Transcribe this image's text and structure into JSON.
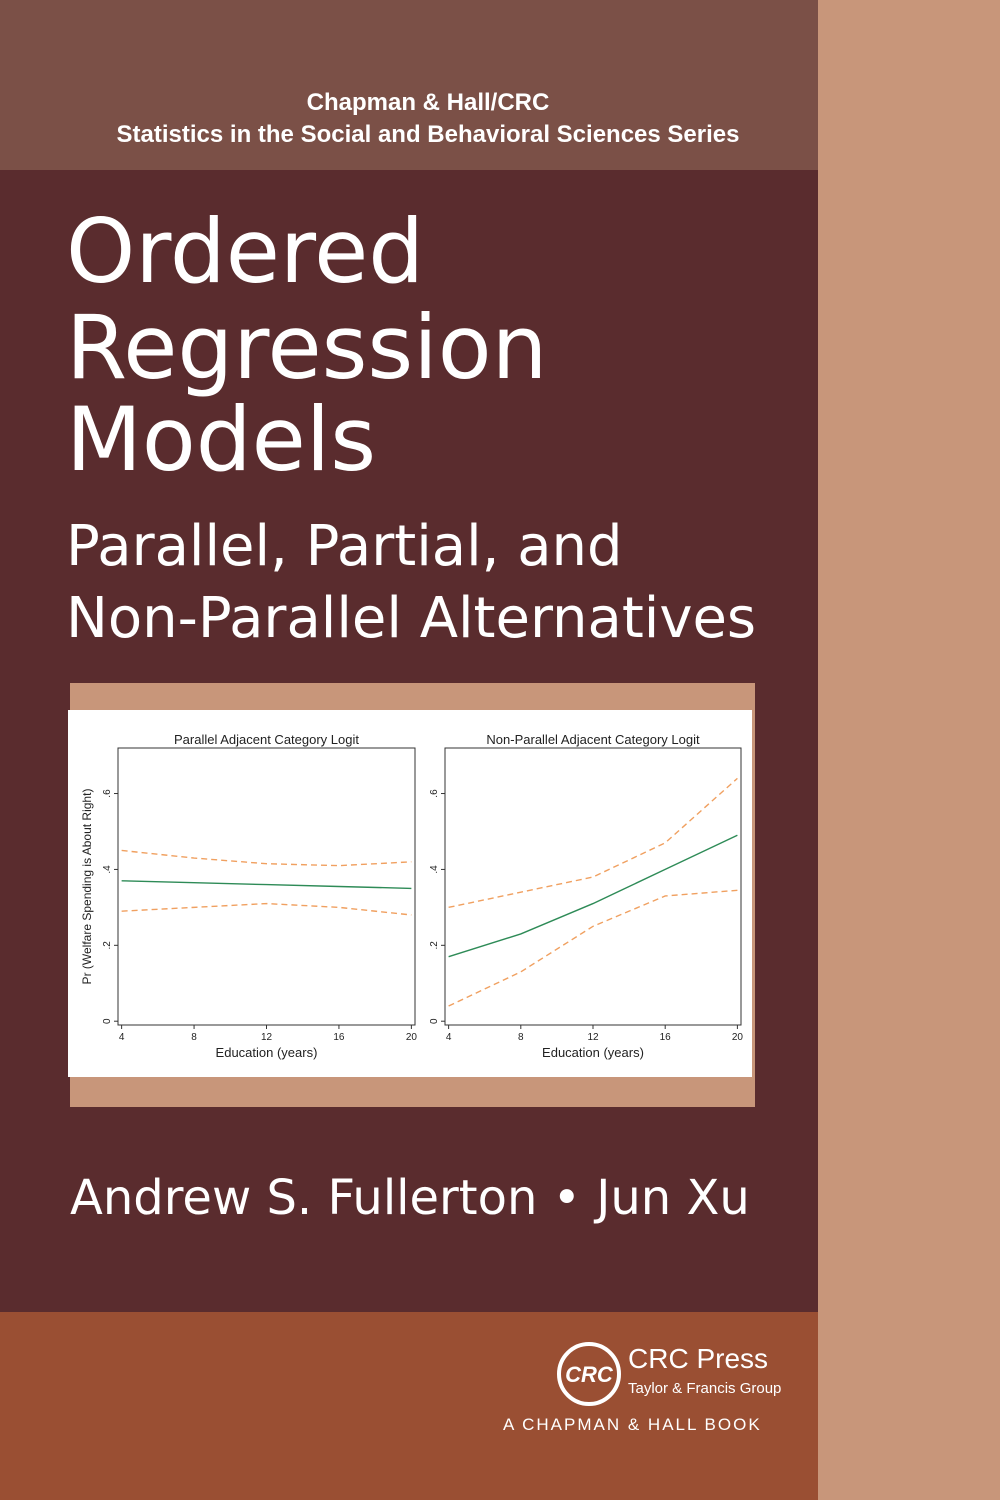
{
  "series_info": {
    "publisher_line": "Chapman & Hall/CRC",
    "series_name": "Statistics in the Social and Behavioral Sciences Series"
  },
  "title_lines": [
    "Ordered",
    "Regression",
    "Models"
  ],
  "subtitle_lines": [
    "Parallel, Partial, and",
    "Non-Parallel Alternatives"
  ],
  "authors": "Andrew S. Fullerton • Jun Xu",
  "publisher": {
    "logo": "CRC",
    "name": "CRC Press",
    "group": "Taylor & Francis Group",
    "imprint": "A CHAPMAN & HALL BOOK"
  },
  "chart_data": [
    {
      "type": "line",
      "title": "Parallel Adjacent Category Logit",
      "x_label": "Education (years)",
      "y_label": "Pr (Welfare Spending is About Right)",
      "x": [
        4,
        8,
        12,
        16,
        20
      ],
      "series": [
        {
          "color": "#2e8b57",
          "dashed": false,
          "values": [
            0.37,
            0.365,
            0.36,
            0.355,
            0.35
          ]
        },
        {
          "color": "#f0a060",
          "dashed": true,
          "values": [
            0.45,
            0.43,
            0.415,
            0.41,
            0.42
          ]
        },
        {
          "color": "#f0a060",
          "dashed": true,
          "values": [
            0.29,
            0.3,
            0.31,
            0.3,
            0.28
          ]
        }
      ],
      "xlim": [
        3.8,
        20.2
      ],
      "xticks": [
        4,
        8,
        12,
        16,
        20
      ],
      "ylim": [
        -0.01,
        0.72
      ],
      "yticks": [
        0,
        {
          "value": 0.2,
          "label": ".2"
        },
        {
          "value": 0.4,
          "label": ".4"
        },
        {
          "value": 0.6,
          "label": ".6"
        }
      ]
    },
    {
      "type": "line",
      "title": "Non-Parallel Adjacent Category Logit",
      "x_label": "Education (years)",
      "x": [
        4,
        8,
        12,
        16,
        20
      ],
      "series": [
        {
          "color": "#2e8b57",
          "dashed": false,
          "values": [
            0.17,
            0.23,
            0.31,
            0.4,
            0.49
          ]
        },
        {
          "color": "#f0a060",
          "dashed": true,
          "values": [
            0.3,
            0.34,
            0.38,
            0.47,
            0.64
          ]
        },
        {
          "color": "#f0a060",
          "dashed": true,
          "values": [
            0.04,
            0.13,
            0.25,
            0.33,
            0.345
          ]
        }
      ],
      "xlim": [
        3.8,
        20.2
      ],
      "xticks": [
        4,
        8,
        12,
        16,
        20
      ],
      "ylim": [
        -0.01,
        0.72
      ],
      "yticks": [
        0,
        {
          "value": 0.2,
          "label": ".2"
        },
        {
          "value": 0.4,
          "label": ".4"
        },
        {
          "value": 0.6,
          "label": ".6"
        }
      ]
    }
  ]
}
